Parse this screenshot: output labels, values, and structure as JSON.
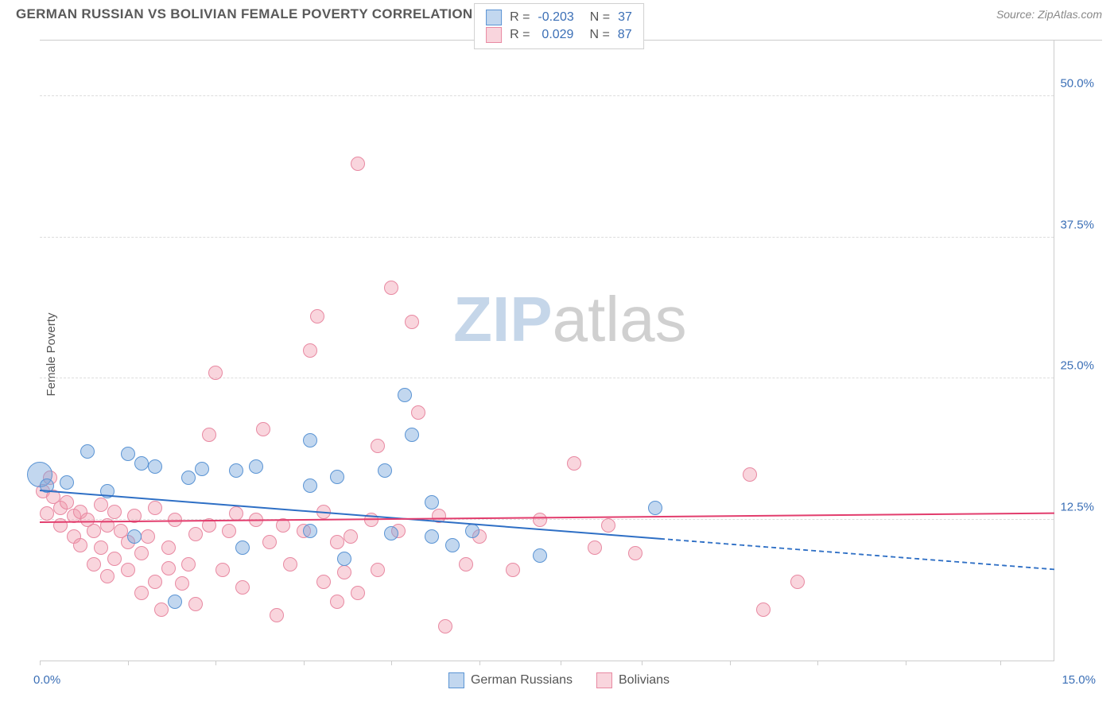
{
  "header": {
    "title": "GERMAN RUSSIAN VS BOLIVIAN FEMALE POVERTY CORRELATION CHART",
    "source": "Source: ZipAtlas.com"
  },
  "chart": {
    "type": "scatter",
    "ylabel": "Female Poverty",
    "xlim": [
      0,
      15
    ],
    "ylim": [
      0,
      55
    ],
    "xtick_labels": [
      "0.0%",
      "15.0%"
    ],
    "xtick_positions": [
      0,
      1.3,
      2.6,
      3.9,
      5.2,
      6.5,
      7.7,
      8.9,
      10.2,
      11.5,
      12.8,
      14.2
    ],
    "ytick_labels": [
      "12.5%",
      "25.0%",
      "37.5%",
      "50.0%"
    ],
    "ytick_values": [
      12.5,
      25.0,
      37.5,
      50.0
    ],
    "grid_color": "#dddddd",
    "background_color": "#ffffff",
    "series": {
      "blue": {
        "name": "German Russians",
        "fill": "rgba(120,166,220,0.45)",
        "stroke": "#5a94d4",
        "marker_radius": 9,
        "r_value": "-0.203",
        "n_value": "37",
        "trend": {
          "y_start": 15.0,
          "y_end": 8.0,
          "solid_until_x": 9.2,
          "color": "#2e6fc5",
          "width": 2.5
        },
        "points": [
          {
            "x": 0.0,
            "y": 16.5,
            "r": 16
          },
          {
            "x": 0.1,
            "y": 15.5
          },
          {
            "x": 0.4,
            "y": 15.8
          },
          {
            "x": 0.7,
            "y": 18.5
          },
          {
            "x": 1.0,
            "y": 15.0
          },
          {
            "x": 1.3,
            "y": 18.3
          },
          {
            "x": 1.4,
            "y": 11.0
          },
          {
            "x": 1.5,
            "y": 17.5
          },
          {
            "x": 1.7,
            "y": 17.2
          },
          {
            "x": 2.0,
            "y": 5.2
          },
          {
            "x": 2.2,
            "y": 16.2
          },
          {
            "x": 2.4,
            "y": 17.0
          },
          {
            "x": 2.9,
            "y": 16.8
          },
          {
            "x": 3.0,
            "y": 10.0
          },
          {
            "x": 3.2,
            "y": 17.2
          },
          {
            "x": 4.0,
            "y": 11.5
          },
          {
            "x": 4.0,
            "y": 19.5
          },
          {
            "x": 4.0,
            "y": 15.5
          },
          {
            "x": 4.4,
            "y": 16.3
          },
          {
            "x": 4.5,
            "y": 9.0
          },
          {
            "x": 5.1,
            "y": 16.8
          },
          {
            "x": 5.2,
            "y": 11.3
          },
          {
            "x": 5.4,
            "y": 23.5
          },
          {
            "x": 5.5,
            "y": 20.0
          },
          {
            "x": 5.8,
            "y": 11.0
          },
          {
            "x": 5.8,
            "y": 14.0
          },
          {
            "x": 6.1,
            "y": 10.2
          },
          {
            "x": 6.4,
            "y": 11.5
          },
          {
            "x": 7.4,
            "y": 9.3
          },
          {
            "x": 9.1,
            "y": 13.5
          }
        ]
      },
      "pink": {
        "name": "Bolivians",
        "fill": "rgba(240,150,170,0.40)",
        "stroke": "#e889a2",
        "marker_radius": 9,
        "r_value": "0.029",
        "n_value": "87",
        "trend": {
          "y_start": 12.2,
          "y_end": 13.0,
          "color": "#e23d6d",
          "width": 2.5
        },
        "points": [
          {
            "x": 0.05,
            "y": 15.0
          },
          {
            "x": 0.1,
            "y": 13.0
          },
          {
            "x": 0.15,
            "y": 16.2
          },
          {
            "x": 0.2,
            "y": 14.5
          },
          {
            "x": 0.3,
            "y": 13.5
          },
          {
            "x": 0.3,
            "y": 12.0
          },
          {
            "x": 0.4,
            "y": 14.0
          },
          {
            "x": 0.5,
            "y": 12.8
          },
          {
            "x": 0.5,
            "y": 11.0
          },
          {
            "x": 0.6,
            "y": 13.2
          },
          {
            "x": 0.6,
            "y": 10.2
          },
          {
            "x": 0.7,
            "y": 12.5
          },
          {
            "x": 0.8,
            "y": 11.5
          },
          {
            "x": 0.8,
            "y": 8.5
          },
          {
            "x": 0.9,
            "y": 13.8
          },
          {
            "x": 0.9,
            "y": 10.0
          },
          {
            "x": 1.0,
            "y": 12.0
          },
          {
            "x": 1.0,
            "y": 7.5
          },
          {
            "x": 1.1,
            "y": 13.2
          },
          {
            "x": 1.1,
            "y": 9.0
          },
          {
            "x": 1.2,
            "y": 11.5
          },
          {
            "x": 1.3,
            "y": 8.0
          },
          {
            "x": 1.3,
            "y": 10.5
          },
          {
            "x": 1.4,
            "y": 12.8
          },
          {
            "x": 1.5,
            "y": 6.0
          },
          {
            "x": 1.5,
            "y": 9.5
          },
          {
            "x": 1.6,
            "y": 11.0
          },
          {
            "x": 1.7,
            "y": 13.5
          },
          {
            "x": 1.7,
            "y": 7.0
          },
          {
            "x": 1.8,
            "y": 4.5
          },
          {
            "x": 1.9,
            "y": 10.0
          },
          {
            "x": 1.9,
            "y": 8.2
          },
          {
            "x": 2.0,
            "y": 12.5
          },
          {
            "x": 2.1,
            "y": 6.8
          },
          {
            "x": 2.2,
            "y": 8.5
          },
          {
            "x": 2.3,
            "y": 11.2
          },
          {
            "x": 2.3,
            "y": 5.0
          },
          {
            "x": 2.5,
            "y": 20.0
          },
          {
            "x": 2.5,
            "y": 12.0
          },
          {
            "x": 2.6,
            "y": 25.5
          },
          {
            "x": 2.7,
            "y": 8.0
          },
          {
            "x": 2.8,
            "y": 11.5
          },
          {
            "x": 2.9,
            "y": 13.0
          },
          {
            "x": 3.0,
            "y": 6.5
          },
          {
            "x": 3.2,
            "y": 12.5
          },
          {
            "x": 3.3,
            "y": 20.5
          },
          {
            "x": 3.4,
            "y": 10.5
          },
          {
            "x": 3.5,
            "y": 4.0
          },
          {
            "x": 3.6,
            "y": 12.0
          },
          {
            "x": 3.7,
            "y": 8.5
          },
          {
            "x": 3.9,
            "y": 11.5
          },
          {
            "x": 4.0,
            "y": 27.5
          },
          {
            "x": 4.1,
            "y": 30.5
          },
          {
            "x": 4.2,
            "y": 7.0
          },
          {
            "x": 4.2,
            "y": 13.2
          },
          {
            "x": 4.4,
            "y": 10.5
          },
          {
            "x": 4.4,
            "y": 5.2
          },
          {
            "x": 4.5,
            "y": 7.8
          },
          {
            "x": 4.6,
            "y": 11.0
          },
          {
            "x": 4.7,
            "y": 6.0
          },
          {
            "x": 4.7,
            "y": 44.0
          },
          {
            "x": 4.9,
            "y": 12.5
          },
          {
            "x": 5.0,
            "y": 8.0
          },
          {
            "x": 5.0,
            "y": 19.0
          },
          {
            "x": 5.2,
            "y": 33.0
          },
          {
            "x": 5.3,
            "y": 11.5
          },
          {
            "x": 5.5,
            "y": 30.0
          },
          {
            "x": 5.6,
            "y": 22.0
          },
          {
            "x": 5.9,
            "y": 12.8
          },
          {
            "x": 6.0,
            "y": 3.0
          },
          {
            "x": 6.3,
            "y": 8.5
          },
          {
            "x": 6.5,
            "y": 11.0
          },
          {
            "x": 7.0,
            "y": 8.0
          },
          {
            "x": 7.4,
            "y": 12.5
          },
          {
            "x": 7.9,
            "y": 17.5
          },
          {
            "x": 8.2,
            "y": 10.0
          },
          {
            "x": 8.4,
            "y": 12.0
          },
          {
            "x": 8.8,
            "y": 9.5
          },
          {
            "x": 10.5,
            "y": 16.5
          },
          {
            "x": 10.7,
            "y": 4.5
          },
          {
            "x": 11.2,
            "y": 7.0
          }
        ]
      }
    },
    "watermark": {
      "text_a": "ZIP",
      "text_b": "atlas",
      "color_a": "rgba(150,180,215,0.55)",
      "color_b": "rgba(150,150,150,0.45)"
    }
  }
}
